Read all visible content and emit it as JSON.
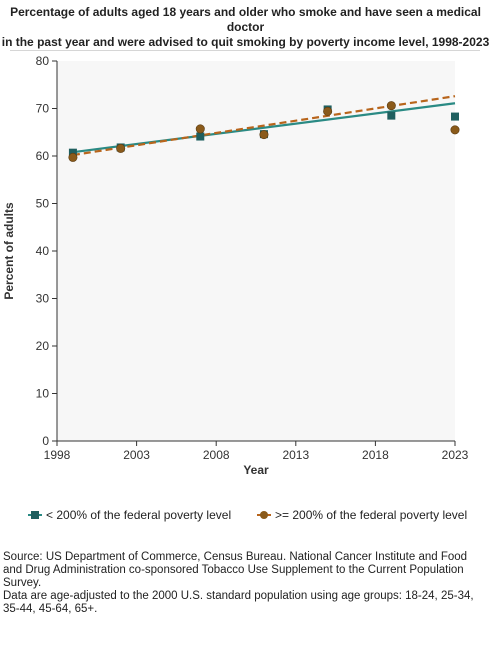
{
  "title_lines": [
    "Percentage of adults aged 18 years and older who smoke and have seen a medical",
    "doctor",
    "in the past year and were advised to quit smoking by poverty income level, 1998-2023"
  ],
  "footnotes": [
    "Source: US Department of Commerce, Census Bureau. National Cancer Institute and Food and Drug Administration co-sponsored Tobacco Use Supplement to the Current Population Survey.",
    "Data are age-adjusted to the 2000 U.S. standard population using age groups: 18-24, 25-34, 35-44, 45-64, 65+."
  ],
  "chart_data": {
    "type": "scatter",
    "xlabel": "Year",
    "ylabel": "Percent of adults",
    "xlim": [
      1998,
      2023
    ],
    "ylim": [
      0,
      80
    ],
    "x_ticks": [
      "1998",
      "2003",
      "2008",
      "2013",
      "2018",
      "2023"
    ],
    "y_ticks": [
      "0",
      "10",
      "20",
      "30",
      "40",
      "50",
      "60",
      "70",
      "80"
    ],
    "grid": false,
    "legend_position": "bottom",
    "series": [
      {
        "name": "< 200% of the federal poverty level",
        "marker": "square",
        "color": "#1f5f5f",
        "trend_color": "#2a8a84",
        "x": [
          1999,
          2002,
          2007,
          2011,
          2015,
          2019,
          2023
        ],
        "y": [
          60.7,
          61.8,
          64.1,
          64.6,
          69.8,
          68.5,
          68.3
        ],
        "trend": [
          60.8,
          71.1
        ]
      },
      {
        "name": ">= 200% of the federal poverty level",
        "marker": "circle",
        "color": "#8a5a1a",
        "trend_color": "#b8651c",
        "x": [
          1999,
          2002,
          2007,
          2011,
          2015,
          2019,
          2023
        ],
        "y": [
          59.7,
          61.6,
          65.7,
          64.5,
          69.4,
          70.6,
          65.5
        ],
        "trend": [
          60.2,
          72.6
        ]
      }
    ]
  }
}
